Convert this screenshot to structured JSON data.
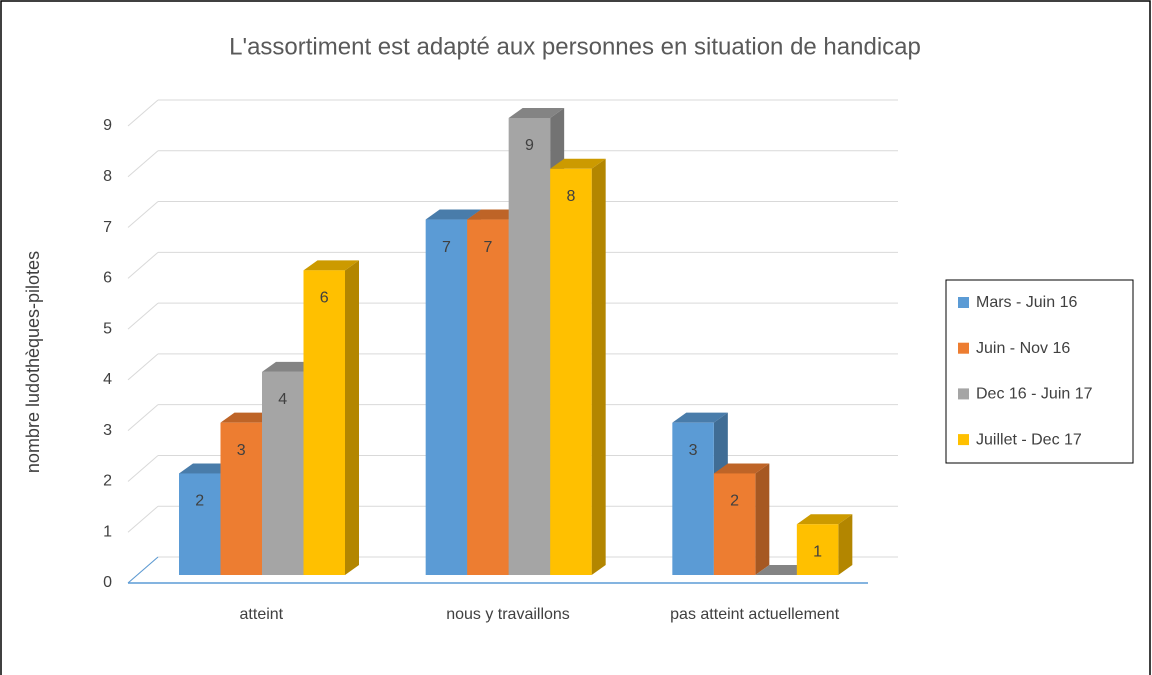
{
  "chart_data": {
    "type": "bar",
    "title": "L'assortiment est adapté aux personnes en situation de handicap",
    "y_label": "nombre ludothèques-pilotes",
    "categories": [
      "atteint",
      "nous y travaillons",
      "pas atteint actuellement"
    ],
    "series": [
      {
        "name": "Mars - Juin 16",
        "color": "#5b9bd5",
        "values": [
          2,
          7,
          3
        ]
      },
      {
        "name": "Juin - Nov 16",
        "color": "#ed7d31",
        "values": [
          3,
          7,
          2
        ]
      },
      {
        "name": "Dec 16 - Juin 17",
        "color": "#a5a5a5",
        "values": [
          4,
          9,
          0
        ]
      },
      {
        "name": "Juillet - Dec 17",
        "color": "#ffc000",
        "values": [
          6,
          8,
          1
        ]
      }
    ],
    "ylim": [
      0,
      9
    ],
    "yticks": [
      0,
      1,
      2,
      3,
      4,
      5,
      6,
      7,
      8,
      9
    ],
    "grid": true,
    "legend": "right"
  }
}
